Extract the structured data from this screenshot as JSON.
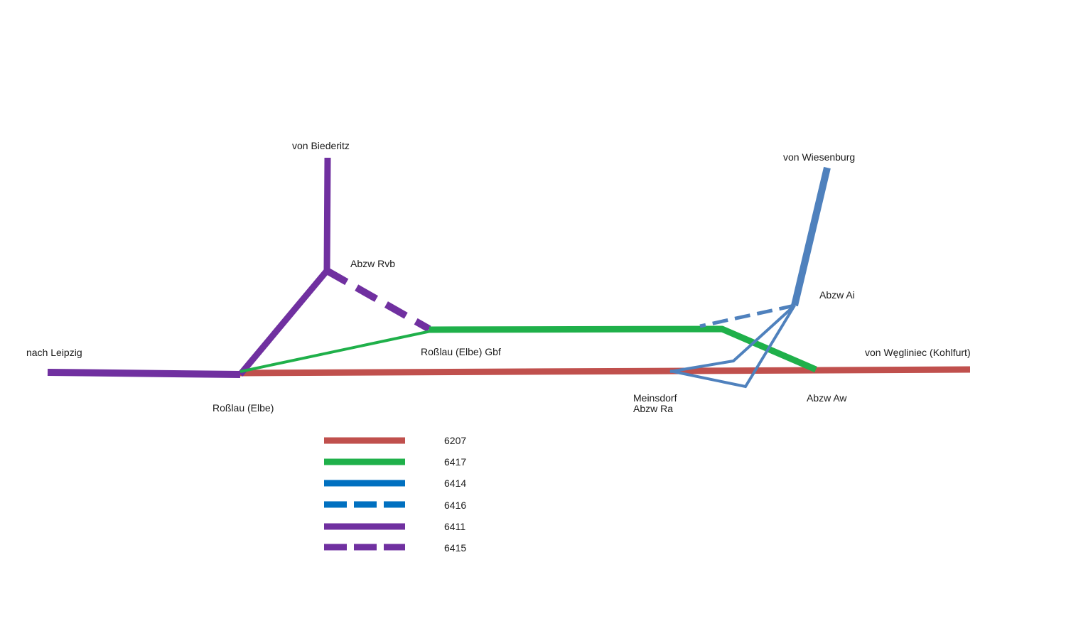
{
  "colors": {
    "line_6207": "#c0504d",
    "line_6417": "#1fb04a",
    "line_6414": "#4f81bd",
    "line_6414_legend": "#0070c0",
    "line_6411": "#7030a0",
    "label": "#1a1a1a"
  },
  "places": {
    "nach_leipzig": "nach Leipzig",
    "rosslau_elbe": "Roßlau (Elbe)",
    "von_biederitz": "von Biederitz",
    "abzw_rvb": "Abzw Rvb",
    "rosslau_gbf": "Roßlau (Elbe) Gbf",
    "von_wiesenburg": "von Wiesenburg",
    "abzw_ai": "Abzw Ai",
    "von_wegliniec": "von Węgliniec (Kohlfurt)",
    "meinsdorf_line1": "Meinsdorf",
    "meinsdorf_line2": "Abzw Ra",
    "abzw_aw": "Abzw Aw"
  },
  "legend": [
    {
      "label": "6207",
      "style": "solid",
      "color": "#c0504d"
    },
    {
      "label": "6417",
      "style": "solid",
      "color": "#1fb04a"
    },
    {
      "label": "6414",
      "style": "solid",
      "color": "#0070c0"
    },
    {
      "label": "6416",
      "style": "dashed",
      "color": "#0070c0"
    },
    {
      "label": "6411",
      "style": "solid",
      "color": "#7030a0"
    },
    {
      "label": "6415",
      "style": "dashed",
      "color": "#7030a0"
    }
  ]
}
